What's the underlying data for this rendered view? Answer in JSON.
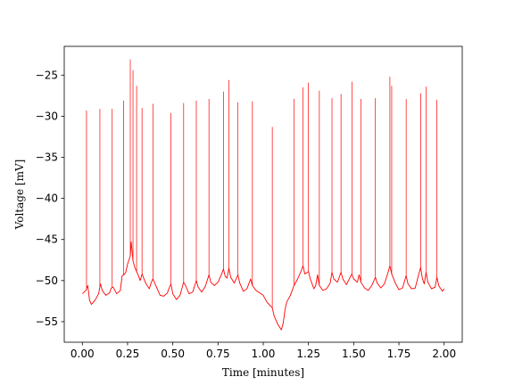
{
  "chart_data": {
    "type": "line",
    "title": "",
    "xlabel": "Time [minutes]",
    "ylabel": "Voltage [mV]",
    "xlim": [
      -0.1,
      2.1
    ],
    "ylim": [
      -57.5,
      -21.5
    ],
    "xticks": [
      0.0,
      0.25,
      0.5,
      0.75,
      1.0,
      1.25,
      1.5,
      1.75,
      2.0
    ],
    "xtick_labels": [
      "0.00",
      "0.25",
      "0.50",
      "0.75",
      "1.00",
      "1.25",
      "1.50",
      "1.75",
      "2.00"
    ],
    "yticks": [
      -55,
      -50,
      -45,
      -40,
      -35,
      -30,
      -25
    ],
    "ytick_labels": [
      "−55",
      "−50",
      "−45",
      "−40",
      "−35",
      "−30",
      "−25"
    ],
    "grid": false,
    "line_color": "#ff0000",
    "series": [
      {
        "baseline": [
          [
            0.0,
            -51.6
          ],
          [
            0.02,
            -51.2
          ],
          [
            0.03,
            -50.6
          ],
          [
            0.04,
            -52.4
          ],
          [
            0.05,
            -52.9
          ],
          [
            0.07,
            -52.4
          ],
          [
            0.09,
            -51.6
          ],
          [
            0.1,
            -50.4
          ],
          [
            0.11,
            -51.2
          ],
          [
            0.13,
            -51.8
          ],
          [
            0.15,
            -51.5
          ],
          [
            0.16,
            -50.9
          ],
          [
            0.17,
            -50.8
          ],
          [
            0.19,
            -51.6
          ],
          [
            0.21,
            -51.2
          ],
          [
            0.22,
            -49.4
          ],
          [
            0.23,
            -49.3
          ],
          [
            0.24,
            -49.0
          ],
          [
            0.25,
            -48.0
          ],
          [
            0.265,
            -47.0
          ],
          [
            0.27,
            -45.3
          ],
          [
            0.28,
            -47.6
          ],
          [
            0.29,
            -48.4
          ],
          [
            0.3,
            -48.9
          ],
          [
            0.31,
            -49.4
          ],
          [
            0.32,
            -50.0
          ],
          [
            0.33,
            -49.2
          ],
          [
            0.35,
            -50.3
          ],
          [
            0.37,
            -51.0
          ],
          [
            0.38,
            -50.3
          ],
          [
            0.39,
            -49.8
          ],
          [
            0.41,
            -50.8
          ],
          [
            0.43,
            -51.8
          ],
          [
            0.45,
            -51.9
          ],
          [
            0.47,
            -51.5
          ],
          [
            0.48,
            -50.9
          ],
          [
            0.49,
            -50.4
          ],
          [
            0.5,
            -51.6
          ],
          [
            0.52,
            -52.3
          ],
          [
            0.54,
            -51.8
          ],
          [
            0.56,
            -50.2
          ],
          [
            0.57,
            -50.6
          ],
          [
            0.59,
            -51.6
          ],
          [
            0.61,
            -51.4
          ],
          [
            0.63,
            -50.0
          ],
          [
            0.64,
            -50.8
          ],
          [
            0.66,
            -51.4
          ],
          [
            0.68,
            -50.7
          ],
          [
            0.7,
            -49.3
          ],
          [
            0.71,
            -50.2
          ],
          [
            0.73,
            -50.6
          ],
          [
            0.75,
            -50.2
          ],
          [
            0.77,
            -49.2
          ],
          [
            0.78,
            -48.6
          ],
          [
            0.79,
            -49.5
          ],
          [
            0.8,
            -49.7
          ],
          [
            0.81,
            -48.5
          ],
          [
            0.82,
            -49.6
          ],
          [
            0.84,
            -50.3
          ],
          [
            0.86,
            -49.3
          ],
          [
            0.87,
            -50.3
          ],
          [
            0.89,
            -51.3
          ],
          [
            0.91,
            -51.0
          ],
          [
            0.93,
            -49.8
          ],
          [
            0.94,
            -50.6
          ],
          [
            0.96,
            -51.2
          ],
          [
            0.98,
            -51.5
          ],
          [
            1.0,
            -51.8
          ],
          [
            1.02,
            -52.6
          ],
          [
            1.04,
            -53.1
          ],
          [
            1.05,
            -53.3
          ],
          [
            1.06,
            -54.3
          ],
          [
            1.08,
            -55.3
          ],
          [
            1.1,
            -56.0
          ],
          [
            1.11,
            -55.2
          ],
          [
            1.12,
            -53.6
          ],
          [
            1.13,
            -52.6
          ],
          [
            1.15,
            -51.8
          ],
          [
            1.17,
            -50.6
          ],
          [
            1.19,
            -49.8
          ],
          [
            1.2,
            -49.3
          ],
          [
            1.21,
            -48.8
          ],
          [
            1.22,
            -48.2
          ],
          [
            1.23,
            -49.2
          ],
          [
            1.25,
            -48.9
          ],
          [
            1.26,
            -49.8
          ],
          [
            1.28,
            -51.0
          ],
          [
            1.29,
            -50.6
          ],
          [
            1.3,
            -49.3
          ],
          [
            1.31,
            -50.6
          ],
          [
            1.33,
            -51.2
          ],
          [
            1.35,
            -51.0
          ],
          [
            1.37,
            -50.3
          ],
          [
            1.38,
            -49.0
          ],
          [
            1.39,
            -49.8
          ],
          [
            1.41,
            -50.2
          ],
          [
            1.43,
            -49.0
          ],
          [
            1.44,
            -49.8
          ],
          [
            1.46,
            -50.5
          ],
          [
            1.48,
            -49.6
          ],
          [
            1.49,
            -49.2
          ],
          [
            1.5,
            -49.8
          ],
          [
            1.52,
            -50.2
          ],
          [
            1.53,
            -49.3
          ],
          [
            1.54,
            -50.2
          ],
          [
            1.56,
            -50.9
          ],
          [
            1.58,
            -51.2
          ],
          [
            1.6,
            -50.6
          ],
          [
            1.62,
            -49.6
          ],
          [
            1.63,
            -50.3
          ],
          [
            1.65,
            -50.9
          ],
          [
            1.67,
            -50.4
          ],
          [
            1.69,
            -49.0
          ],
          [
            1.7,
            -48.2
          ],
          [
            1.71,
            -49.2
          ],
          [
            1.73,
            -50.3
          ],
          [
            1.75,
            -51.1
          ],
          [
            1.77,
            -50.9
          ],
          [
            1.79,
            -49.4
          ],
          [
            1.8,
            -50.4
          ],
          [
            1.82,
            -51.0
          ],
          [
            1.84,
            -50.9
          ],
          [
            1.86,
            -49.2
          ],
          [
            1.87,
            -48.4
          ],
          [
            1.88,
            -49.8
          ],
          [
            1.89,
            -50.4
          ],
          [
            1.9,
            -49.0
          ],
          [
            1.91,
            -50.2
          ],
          [
            1.93,
            -51.0
          ],
          [
            1.95,
            -50.8
          ],
          [
            1.96,
            -49.6
          ],
          [
            1.97,
            -50.6
          ],
          [
            1.99,
            -51.3
          ],
          [
            2.0,
            -51.0
          ]
        ],
        "spikes": [
          [
            0.023,
            -29.3
          ],
          [
            0.097,
            -29.1
          ],
          [
            0.165,
            -29.1
          ],
          [
            0.228,
            -28.1
          ],
          [
            0.265,
            -23.1
          ],
          [
            0.28,
            -24.4
          ],
          [
            0.3,
            -26.3
          ],
          [
            0.33,
            -29.0
          ],
          [
            0.39,
            -28.5
          ],
          [
            0.49,
            -29.6
          ],
          [
            0.56,
            -28.4
          ],
          [
            0.63,
            -28.1
          ],
          [
            0.7,
            -27.9
          ],
          [
            0.78,
            -27.0
          ],
          [
            0.81,
            -25.6
          ],
          [
            0.86,
            -28.3
          ],
          [
            0.94,
            -28.2
          ],
          [
            1.05,
            -31.3
          ],
          [
            1.17,
            -27.9
          ],
          [
            1.22,
            -26.5
          ],
          [
            1.25,
            -25.9
          ],
          [
            1.31,
            -26.9
          ],
          [
            1.38,
            -27.8
          ],
          [
            1.43,
            -27.3
          ],
          [
            1.49,
            -25.8
          ],
          [
            1.54,
            -27.9
          ],
          [
            1.62,
            -27.8
          ],
          [
            1.7,
            -25.2
          ],
          [
            1.71,
            -26.3
          ],
          [
            1.79,
            -27.9
          ],
          [
            1.87,
            -27.2
          ],
          [
            1.9,
            -26.4
          ],
          [
            1.96,
            -28.0
          ]
        ]
      }
    ]
  }
}
